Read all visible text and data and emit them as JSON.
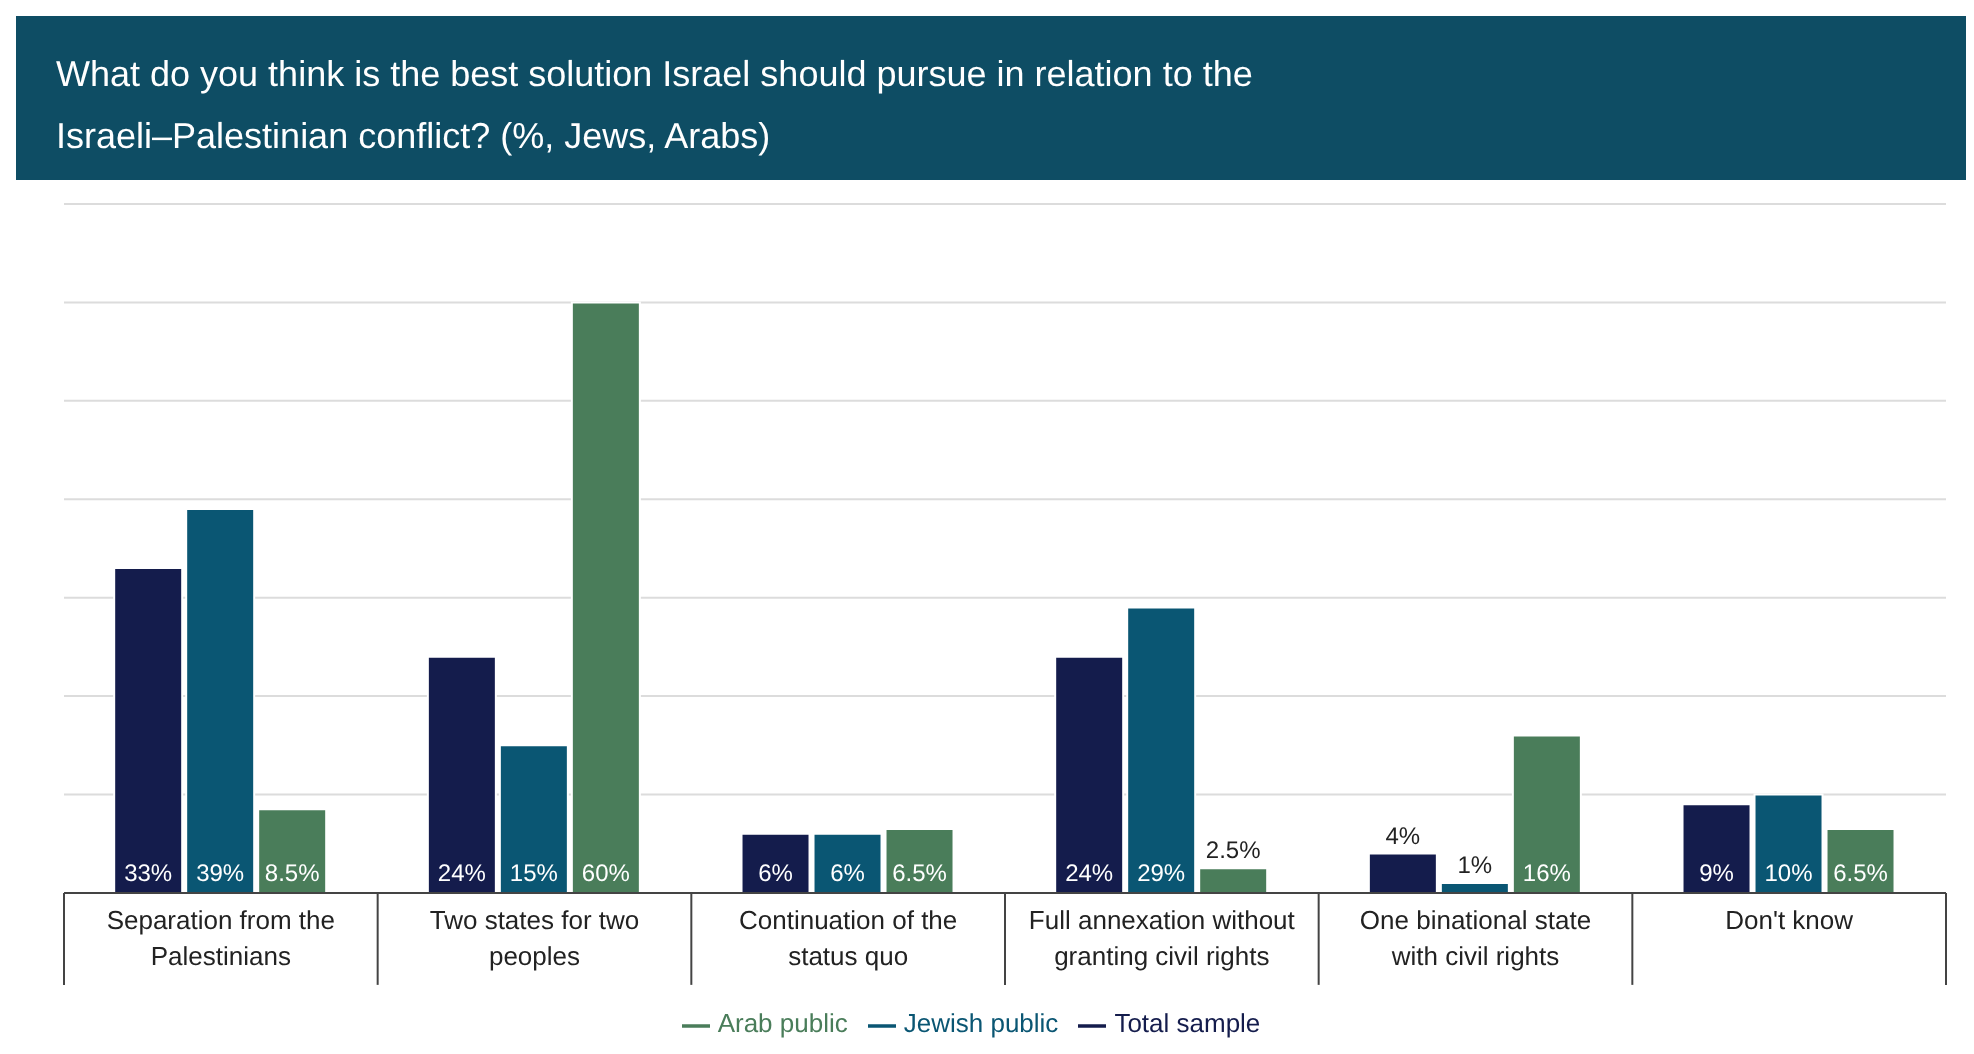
{
  "chart_data": {
    "type": "bar",
    "title": "What do you think is the best solution Israel should pursue in relation to the Israeli–Palestinian conflict? (%, Jews, Arabs)",
    "categories": [
      "Separation from the Palestinians",
      "Two states for two peoples",
      "Continuation of the status quo",
      "Full annexation without granting civil rights",
      "One binational state with civil rights",
      "Don't know"
    ],
    "series": [
      {
        "name": "Total sample",
        "color": "#141c4c",
        "values": [
          33,
          24,
          6,
          24,
          4,
          9
        ],
        "value_labels": [
          "33%",
          "24%",
          "6%",
          "24%",
          "4%",
          "9%"
        ]
      },
      {
        "name": "Jewish public",
        "color": "#0a5673",
        "values": [
          39,
          15,
          6,
          29,
          1,
          10
        ],
        "value_labels": [
          "39%",
          "15%",
          "6%",
          "29%",
          "1%",
          "10%"
        ]
      },
      {
        "name": "Arab public",
        "color": "#4a7d5a",
        "values": [
          8.5,
          60,
          6.5,
          2.5,
          16,
          6.5
        ],
        "value_labels": [
          "8.5%",
          "60%",
          "6.5%",
          "2.5%",
          "16%",
          "6.5%"
        ]
      }
    ],
    "ylim": [
      0,
      70
    ],
    "tick_labels": "x",
    "grid": "y",
    "legend": "bottom"
  }
}
